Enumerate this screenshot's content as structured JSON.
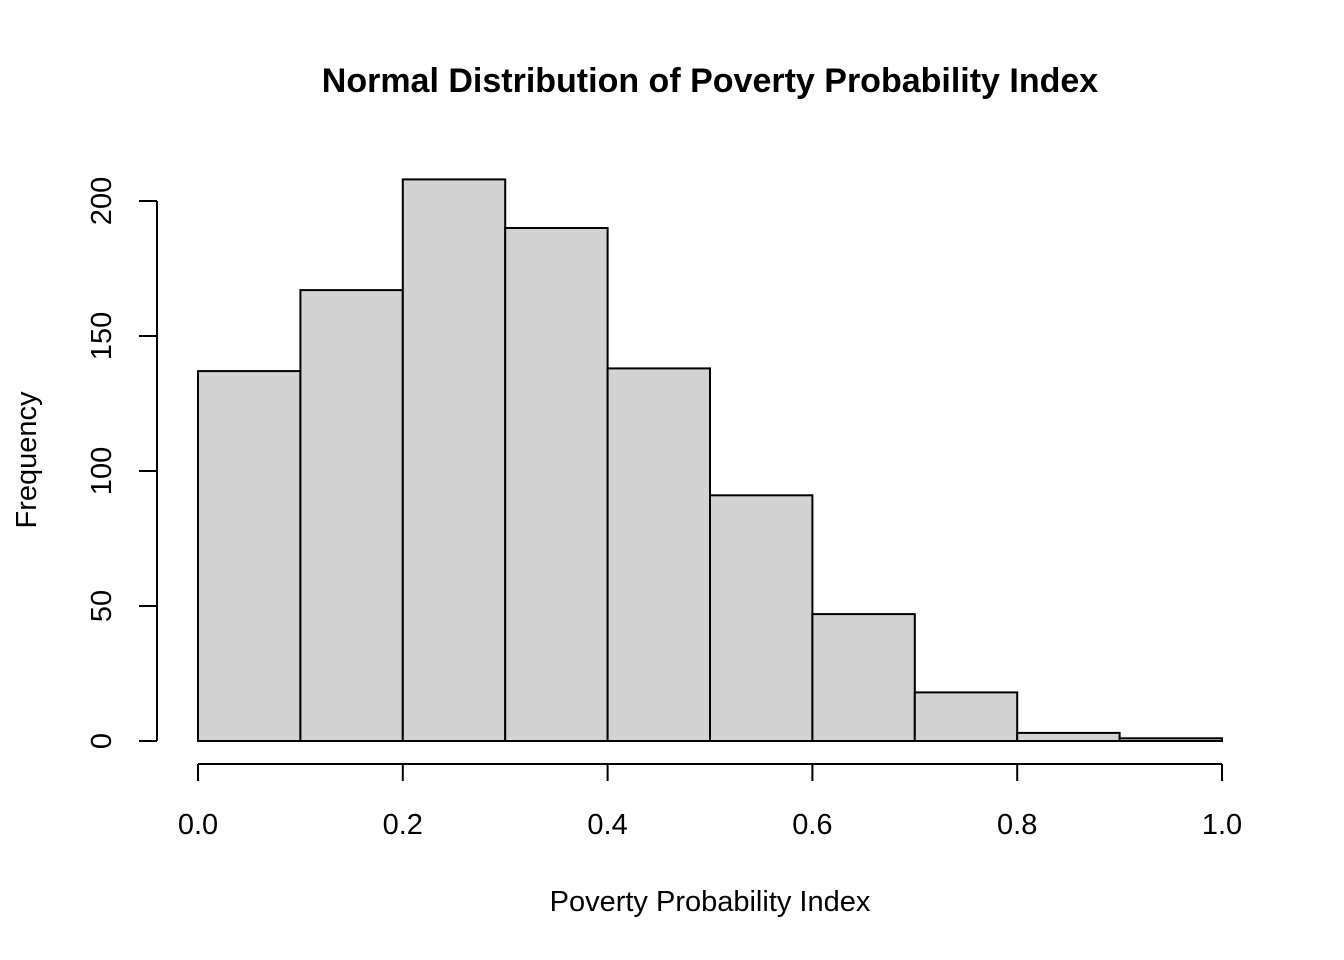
{
  "chart_data": {
    "type": "bar",
    "title": "Normal Distribution of Poverty Probability Index",
    "xlabel": "Poverty Probability Index",
    "ylabel": "Frequency",
    "bins": [
      {
        "start": 0.0,
        "end": 0.1,
        "count": 137
      },
      {
        "start": 0.1,
        "end": 0.2,
        "count": 167
      },
      {
        "start": 0.2,
        "end": 0.3,
        "count": 208
      },
      {
        "start": 0.3,
        "end": 0.4,
        "count": 190
      },
      {
        "start": 0.4,
        "end": 0.5,
        "count": 138
      },
      {
        "start": 0.5,
        "end": 0.6,
        "count": 91
      },
      {
        "start": 0.6,
        "end": 0.7,
        "count": 47
      },
      {
        "start": 0.7,
        "end": 0.8,
        "count": 18
      },
      {
        "start": 0.8,
        "end": 0.9,
        "count": 3
      },
      {
        "start": 0.9,
        "end": 1.0,
        "count": 1
      }
    ],
    "xlim": [
      0.0,
      1.0
    ],
    "ylim": [
      0,
      208
    ],
    "x_ticks": [
      "0.0",
      "0.2",
      "0.4",
      "0.6",
      "0.8",
      "1.0"
    ],
    "y_ticks": [
      "0",
      "50",
      "100",
      "150",
      "200"
    ],
    "grid": false,
    "legend": "none",
    "bar_color": "#d3d3d3",
    "edge_color": "#000000"
  }
}
